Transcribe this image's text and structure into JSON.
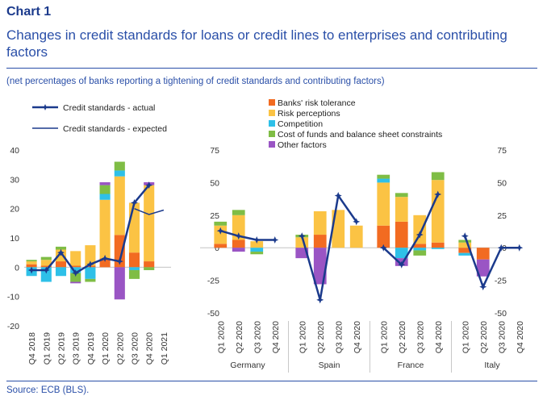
{
  "header": {
    "chart_label": "Chart 1",
    "title": "Changes in credit standards for loans or credit lines to enterprises and contributing factors",
    "subtitle": "(net percentages of banks reporting a tightening of credit standards and contributing factors)",
    "source": "Source: ECB (BLS)."
  },
  "colors": {
    "risk_tolerance": "#f26b21",
    "risk_perceptions": "#fbc344",
    "competition": "#2ec0e8",
    "cost_of_funds": "#7fbd45",
    "other_factors": "#9a55c4",
    "actual": "#1b3a8c",
    "expected": "#1b3a8c"
  },
  "chart_data": [
    {
      "type": "bar",
      "panel": "euro-area",
      "categories": [
        "Q4 2018",
        "Q1 2019",
        "Q2 2019",
        "Q3 2019",
        "Q4 2019",
        "Q1 2020",
        "Q2 2020",
        "Q3 2020",
        "Q4 2020",
        "Q1 2021"
      ],
      "ylim": [
        -20,
        40
      ],
      "yticks": [
        -20,
        -10,
        0,
        10,
        20,
        30,
        40
      ],
      "stacked": true,
      "series": [
        {
          "name": "Banks' risk tolerance",
          "values": [
            1,
            0.5,
            2,
            0.5,
            0.5,
            3,
            11,
            5,
            2,
            null
          ]
        },
        {
          "name": "Risk perceptions",
          "values": [
            1,
            2,
            4,
            5,
            7,
            20,
            20,
            17,
            26,
            null
          ]
        },
        {
          "name": "Competition",
          "values": [
            -3,
            -5,
            -3,
            -2,
            -4,
            2,
            2,
            -1,
            0,
            null
          ]
        },
        {
          "name": "Cost of funds and balance sheet constraints",
          "values": [
            0.5,
            1,
            1,
            -3,
            -1,
            3,
            3,
            -3,
            -1,
            null
          ]
        },
        {
          "name": "Other factors",
          "values": [
            0,
            0,
            0,
            -0.5,
            0,
            1,
            -11,
            0,
            1,
            null
          ]
        },
        {
          "name": "Credit standards - actual",
          "type": "line",
          "values": [
            -1,
            -1,
            5,
            -2,
            1,
            3,
            2,
            22,
            28,
            null
          ]
        },
        {
          "name": "Credit standards - expected",
          "type": "line",
          "values": [
            null,
            null,
            null,
            null,
            null,
            null,
            null,
            20,
            18,
            19.5
          ]
        }
      ]
    },
    {
      "type": "bar",
      "panel": "countries",
      "groups": [
        "Germany",
        "Spain",
        "France",
        "Italy"
      ],
      "categories": [
        "Q1 2020",
        "Q2 2020",
        "Q3 2020",
        "Q4 2020"
      ],
      "ylim": [
        -50,
        75
      ],
      "yticks": [
        -50,
        -25,
        0,
        25,
        50,
        75
      ],
      "stacked": true,
      "series": [
        {
          "name": "Banks' risk tolerance",
          "values": {
            "Germany": [
              3,
              6,
              0,
              0
            ],
            "Spain": [
              0,
              10,
              0,
              0
            ],
            "France": [
              17,
              20,
              3,
              4
            ],
            "Italy": [
              -4,
              -9,
              0,
              0
            ]
          }
        },
        {
          "name": "Risk perceptions",
          "values": {
            "Germany": [
              14,
              19,
              5,
              0
            ],
            "Spain": [
              8,
              18,
              29,
              17
            ],
            "France": [
              33,
              19,
              22,
              48
            ],
            "Italy": [
              4,
              0,
              0,
              0
            ]
          }
        },
        {
          "name": "Competition",
          "values": {
            "Germany": [
              0,
              0,
              -3,
              0
            ],
            "Spain": [
              0,
              0,
              0,
              0
            ],
            "France": [
              3,
              -8,
              -2,
              -1
            ],
            "Italy": [
              -2,
              0,
              0,
              0
            ]
          }
        },
        {
          "name": "Cost of funds and balance sheet constraints",
          "values": {
            "Germany": [
              3,
              4,
              -2,
              0
            ],
            "Spain": [
              2,
              0,
              0,
              0
            ],
            "France": [
              3,
              3,
              -4,
              6
            ],
            "Italy": [
              2,
              0,
              0,
              0
            ]
          }
        },
        {
          "name": "Other factors",
          "values": {
            "Germany": [
              0,
              -3,
              0,
              0
            ],
            "Spain": [
              -8,
              -28,
              0,
              0
            ],
            "France": [
              0,
              -6,
              0,
              0
            ],
            "Italy": [
              0,
              -13,
              0,
              0
            ]
          }
        },
        {
          "name": "Credit standards - actual",
          "type": "line",
          "values": {
            "Germany": [
              13,
              9,
              6,
              6
            ],
            "Spain": [
              9,
              -40,
              40,
              20
            ],
            "France": [
              0,
              -13,
              10,
              41
            ],
            "Italy": [
              9,
              -30,
              0,
              0
            ]
          }
        }
      ]
    }
  ],
  "legend": [
    {
      "key": "actual",
      "label": "Credit standards - actual"
    },
    {
      "key": "expected",
      "label": "Credit standards - expected"
    },
    {
      "key": "risk_tolerance",
      "label": "Banks' risk tolerance"
    },
    {
      "key": "risk_perceptions",
      "label": "Risk perceptions"
    },
    {
      "key": "competition",
      "label": "Competition"
    },
    {
      "key": "cost_of_funds",
      "label": "Cost of funds and balance sheet constraints"
    },
    {
      "key": "other_factors",
      "label": "Other factors"
    }
  ]
}
